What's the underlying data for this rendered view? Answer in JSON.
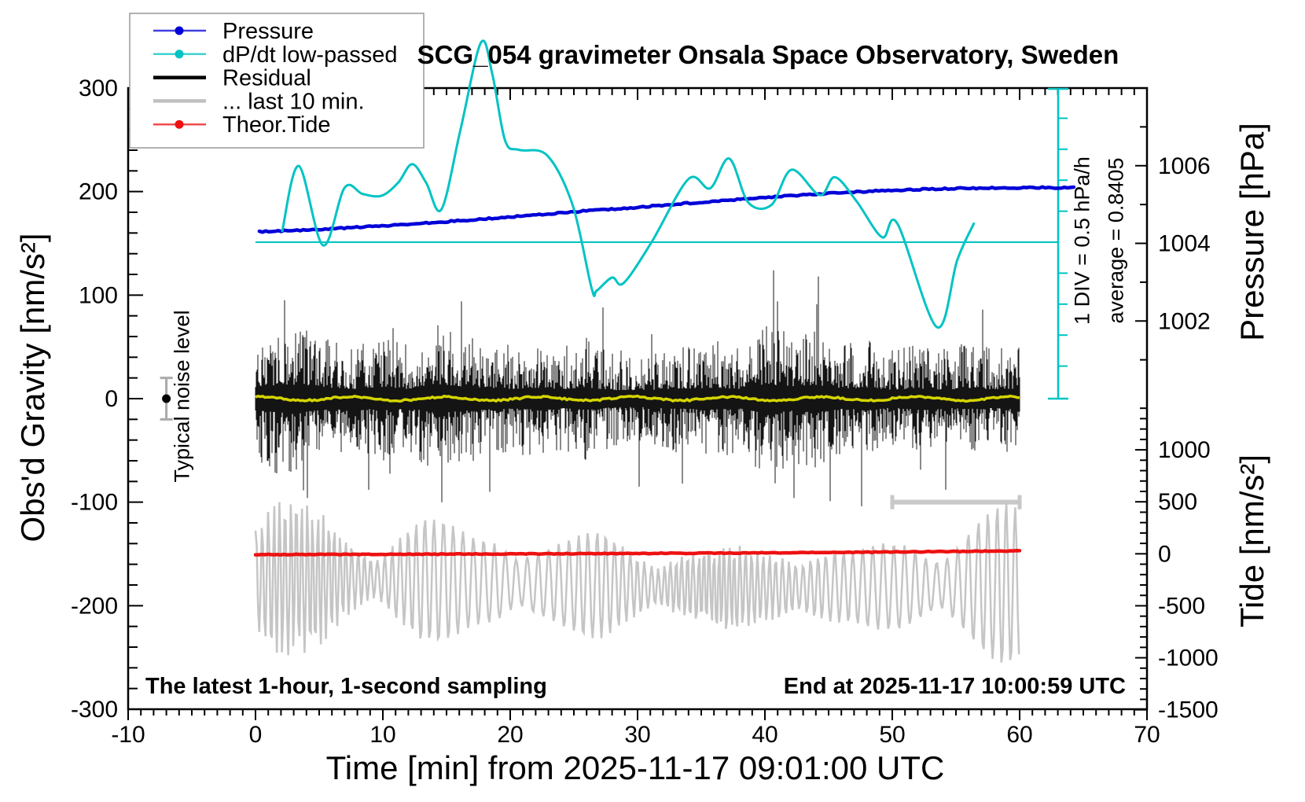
{
  "chart": {
    "title": "SCG_054 gravimeter Onsala Space Observatory, Sweden",
    "xlabel": "Time [min] from 2025-11-17 09:01:00 UTC",
    "ylabel_left": "Obs'd Gravity [nm/s²]",
    "ylabel_pressure": "Pressure [hPa]",
    "ylabel_tide": "Tide [nm/s²]",
    "note_sampling": "The latest 1-hour, 1-second sampling",
    "note_end": "End at 2025-11-17 10:00:59 UTC",
    "note_noise": "Typical noise level",
    "note_div": "1 DIV = 0.5 hPa/h",
    "note_average": "average = 0.8405"
  },
  "chart_data": {
    "type": "line",
    "title": "SCG_054 gravimeter Onsala Space Observatory, Sweden",
    "xlabel": "Time [min] from 2025-11-17 09:01:00 UTC",
    "x_axis": {
      "range": [
        -10,
        70
      ],
      "major_tick": 10,
      "minor_tick": 1,
      "tick_labels": [
        "-10",
        "0",
        "10",
        "20",
        "30",
        "40",
        "50",
        "60",
        "70"
      ]
    },
    "gravity_axis": {
      "label": "Obs'd Gravity [nm/s²]",
      "range": [
        -300,
        300
      ],
      "major_tick": 100,
      "minor_tick": 20,
      "tick_labels": [
        "300",
        "200",
        "100",
        "0",
        "-100",
        "-200",
        "-300"
      ]
    },
    "pressure_axis": {
      "label": "Pressure [hPa]",
      "range": [
        1000,
        1008
      ],
      "major_ticks": [
        1002,
        1004,
        1006
      ],
      "minor_ticks": [
        1001,
        1003,
        1005,
        1007
      ]
    },
    "tide_axis": {
      "label": "Tide [nm/s²]",
      "range": [
        -1500,
        1490
      ],
      "major_ticks": [
        1000,
        500,
        0,
        -500,
        -1000,
        -1500
      ],
      "minor_tick_step": 100
    },
    "legend": [
      {
        "label": "Pressure",
        "color": "#0000d8",
        "style": "thin-dot"
      },
      {
        "label": "dP/dt low-passed",
        "color": "#00c3c3",
        "style": "thin-dot"
      },
      {
        "label": "Residual",
        "color": "#000000",
        "style": "thick"
      },
      {
        "label": "... last 10 min.",
        "color": "#c0c0c0",
        "style": "thick"
      },
      {
        "label": "Theor.Tide",
        "color": "#ee1111",
        "style": "thin-dot"
      }
    ],
    "grid": false,
    "legend_position": "top-left",
    "series": {
      "pressure_hPa": [
        [
          0.3,
          1004.3
        ],
        [
          5,
          1004.36
        ],
        [
          10,
          1004.45
        ],
        [
          15,
          1004.56
        ],
        [
          20,
          1004.68
        ],
        [
          25,
          1004.81
        ],
        [
          30,
          1004.93
        ],
        [
          35,
          1005.06
        ],
        [
          40,
          1005.18
        ],
        [
          44,
          1005.27
        ],
        [
          48,
          1005.34
        ],
        [
          52,
          1005.39
        ],
        [
          56,
          1005.42
        ],
        [
          60,
          1005.43
        ],
        [
          64.3,
          1005.44
        ]
      ],
      "dpdt_hPa_per_h": [
        [
          2.1,
          1.02
        ],
        [
          3.4,
          2.07
        ],
        [
          5.3,
          0.79
        ],
        [
          7.0,
          1.72
        ],
        [
          8.4,
          1.62
        ],
        [
          9.9,
          1.59
        ],
        [
          11.2,
          1.8
        ],
        [
          12.3,
          2.1
        ],
        [
          13.4,
          1.8
        ],
        [
          14.6,
          1.37
        ],
        [
          16.1,
          2.66
        ],
        [
          17.7,
          4.06
        ],
        [
          18.6,
          3.55
        ],
        [
          19.6,
          2.48
        ],
        [
          20.7,
          2.33
        ],
        [
          22.9,
          2.24
        ],
        [
          24.9,
          1.44
        ],
        [
          26.4,
          0.09
        ],
        [
          26.8,
          0.06
        ],
        [
          28.0,
          0.27
        ],
        [
          28.9,
          0.18
        ],
        [
          31.1,
          0.84
        ],
        [
          34.0,
          1.86
        ],
        [
          35.7,
          1.71
        ],
        [
          37.2,
          2.19
        ],
        [
          38.7,
          1.48
        ],
        [
          40.5,
          1.44
        ],
        [
          42.1,
          2.01
        ],
        [
          44.3,
          1.6
        ],
        [
          45.5,
          1.89
        ],
        [
          47.2,
          1.5
        ],
        [
          49.2,
          0.92
        ],
        [
          50.4,
          1.14
        ],
        [
          53.5,
          -0.53
        ],
        [
          55.1,
          0.55
        ],
        [
          56.4,
          1.14
        ]
      ],
      "dpdt_average_hPa_per_h": 0.8405,
      "dpdt_div_hPa_per_h": 0.5,
      "theor_tide_nm_s2": [
        [
          0,
          -8
        ],
        [
          15,
          -3
        ],
        [
          30,
          3
        ],
        [
          45,
          12
        ],
        [
          60,
          28
        ]
      ],
      "residual_nm_s2": {
        "mean": 0,
        "envelope": [
          [
            0,
            62
          ],
          [
            2,
            75
          ],
          [
            4,
            68
          ],
          [
            6,
            55
          ],
          [
            8,
            52
          ],
          [
            10,
            60
          ],
          [
            12,
            52
          ],
          [
            14,
            72
          ],
          [
            16,
            66
          ],
          [
            18,
            58
          ],
          [
            20,
            52
          ],
          [
            22,
            58
          ],
          [
            24,
            50
          ],
          [
            26,
            60
          ],
          [
            28,
            46
          ],
          [
            30,
            44
          ],
          [
            32,
            50
          ],
          [
            34,
            54
          ],
          [
            36,
            58
          ],
          [
            38,
            52
          ],
          [
            40,
            78
          ],
          [
            42,
            64
          ],
          [
            44,
            74
          ],
          [
            46,
            55
          ],
          [
            48,
            58
          ],
          [
            50,
            48
          ],
          [
            52,
            54
          ],
          [
            54,
            48
          ],
          [
            56,
            55
          ],
          [
            58,
            50
          ],
          [
            60,
            54
          ]
        ],
        "spikes": [
          [
            2.3,
            95
          ],
          [
            4.1,
            -96
          ],
          [
            8.9,
            -88
          ],
          [
            14.6,
            -100
          ],
          [
            16.2,
            94
          ],
          [
            18.4,
            -90
          ],
          [
            27.3,
            88
          ],
          [
            30.1,
            -85
          ],
          [
            33.5,
            -82
          ],
          [
            40.7,
            124
          ],
          [
            42.3,
            -96
          ],
          [
            44.2,
            118
          ],
          [
            45.1,
            -99
          ],
          [
            47.6,
            -104
          ],
          [
            54.2,
            -88
          ],
          [
            57.1,
            86
          ]
        ]
      },
      "residual_lowpass_nm_s2": {
        "mean": 0,
        "amplitude": 3
      },
      "last10min_display": {
        "center_nm_s2": -178,
        "envelope_nm_s2": [
          [
            0,
            72
          ],
          [
            1.5,
            84
          ],
          [
            3,
            76
          ],
          [
            5,
            67
          ],
          [
            7,
            46
          ],
          [
            9,
            36
          ],
          [
            11,
            55
          ],
          [
            13,
            65
          ],
          [
            15,
            57
          ],
          [
            17,
            46
          ],
          [
            19,
            52
          ],
          [
            21,
            46
          ],
          [
            23,
            42
          ],
          [
            25,
            47
          ],
          [
            27,
            53
          ],
          [
            29,
            44
          ],
          [
            31,
            36
          ],
          [
            33,
            42
          ],
          [
            35,
            38
          ],
          [
            37,
            44
          ],
          [
            39,
            38
          ],
          [
            41,
            42
          ],
          [
            43,
            47
          ],
          [
            45,
            42
          ],
          [
            47,
            35
          ],
          [
            49,
            42
          ],
          [
            51,
            47
          ],
          [
            53,
            42
          ],
          [
            55,
            55
          ],
          [
            57,
            72
          ],
          [
            59,
            80
          ],
          [
            60,
            72
          ]
        ],
        "window_min": [
          50,
          60
        ],
        "window_level_nm_s2": -100
      },
      "noise_marker": {
        "t_min": -7,
        "value_nm_s2": 0,
        "error_nm_s2": 20
      }
    },
    "colors": {
      "pressure": "#0000d8",
      "dpdt": "#00c3c3",
      "residual": "#141414",
      "last10": "#c5c5c5",
      "tide": "#ee1111",
      "lowpass": "#d4d400",
      "window_bar": "#c8c8c8",
      "noise_bar": "#aaaaaa",
      "frame": "#000000"
    }
  }
}
